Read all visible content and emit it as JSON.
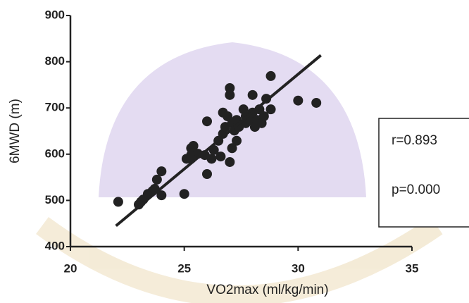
{
  "chart_data": {
    "type": "scatter",
    "xlabel": "VO2max  (ml/kg/min)",
    "ylabel": "6MWD (m)",
    "xlim": [
      20,
      35
    ],
    "xticks": [
      20,
      25,
      30,
      35
    ],
    "ylim": [
      400,
      900
    ],
    "yticks": [
      400,
      500,
      600,
      700,
      800,
      900
    ],
    "color": "#222222",
    "x": [
      22.1,
      23.0,
      23.1,
      23.2,
      23.4,
      23.6,
      23.7,
      23.8,
      24.0,
      24.0,
      25.0,
      25.1,
      25.3,
      25.3,
      25.4,
      25.6,
      25.9,
      26.0,
      26.0,
      26.2,
      26.3,
      26.5,
      26.6,
      26.7,
      26.7,
      26.8,
      26.9,
      27.0,
      27.0,
      27.0,
      27.1,
      27.1,
      27.2,
      27.3,
      27.3,
      27.4,
      27.6,
      27.7,
      27.7,
      27.9,
      28.0,
      28.0,
      28.1,
      28.2,
      28.3,
      28.4,
      28.5,
      28.6,
      28.8,
      28.8,
      30.0,
      30.8,
      25.3
    ],
    "y": [
      497,
      491,
      497,
      502,
      514,
      520,
      525,
      545,
      563,
      511,
      514,
      590,
      598,
      613,
      618,
      601,
      598,
      671,
      557,
      590,
      609,
      629,
      595,
      644,
      690,
      659,
      682,
      583,
      728,
      743,
      613,
      667,
      651,
      674,
      629,
      659,
      697,
      682,
      667,
      674,
      728,
      690,
      659,
      674,
      697,
      667,
      682,
      720,
      769,
      697,
      716,
      711,
      590
    ],
    "fit_line": {
      "x": [
        22,
        31
      ],
      "y": [
        445,
        814
      ]
    },
    "annotations": [
      "r=0.893",
      "p=0.000"
    ]
  }
}
